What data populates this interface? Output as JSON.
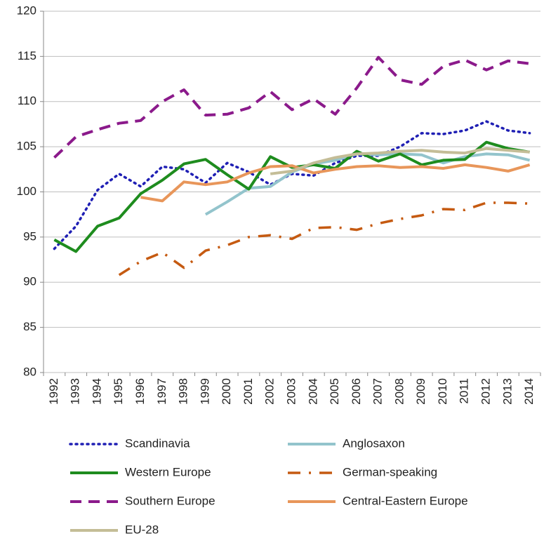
{
  "chart_data": {
    "type": "line",
    "categories": [
      "1992",
      "1993",
      "1994",
      "1995",
      "1996",
      "1997",
      "1998",
      "1999",
      "2000",
      "2001",
      "2002",
      "2003",
      "2004",
      "2005",
      "2006",
      "2007",
      "2008",
      "2009",
      "2010",
      "2011",
      "2012",
      "2013",
      "2014"
    ],
    "ylim": [
      80,
      120
    ],
    "yticks": [
      80,
      85,
      90,
      95,
      100,
      105,
      110,
      115,
      120
    ],
    "grid": true,
    "series": [
      {
        "name": "Scandinavia",
        "color": "#1f1fb4",
        "style": "dotted",
        "values": [
          93.7,
          96.2,
          100.2,
          102,
          100.6,
          102.8,
          102.5,
          101,
          103.2,
          102.2,
          100.8,
          102,
          101.8,
          103.2,
          104,
          104,
          105,
          106.5,
          106.4,
          106.8,
          107.8,
          106.8,
          106.5
        ]
      },
      {
        "name": "Anglosaxon",
        "color": "#93c4cc",
        "style": "solid",
        "values": [
          null,
          null,
          null,
          null,
          null,
          null,
          null,
          97.5,
          98.9,
          100.4,
          100.6,
          102.2,
          103.1,
          103.5,
          104.2,
          104.1,
          104.2,
          104.1,
          103.2,
          103.9,
          104.2,
          104.1,
          103.5
        ]
      },
      {
        "name": "Western Europe",
        "color": "#1e8c1e",
        "style": "solid",
        "values": [
          94.7,
          93.4,
          96.2,
          97.1,
          99.8,
          101.3,
          103.1,
          103.6,
          101.9,
          100.3,
          103.9,
          102.7,
          103,
          102.6,
          104.5,
          103.4,
          104.2,
          103,
          103.5,
          103.6,
          105.5,
          104.8,
          104.4
        ]
      },
      {
        "name": "German-speaking",
        "color": "#c55a11",
        "style": "dashdot",
        "values": [
          null,
          null,
          null,
          90.8,
          92.3,
          93.3,
          91.6,
          93.5,
          94.1,
          95,
          95.2,
          94.8,
          96,
          96.1,
          95.8,
          96.5,
          97,
          97.4,
          98.1,
          98,
          98.8,
          98.8,
          98.7
        ]
      },
      {
        "name": "Southern Europe",
        "color": "#8b1a8b",
        "style": "dashed",
        "values": [
          103.8,
          106.1,
          106.9,
          107.6,
          107.9,
          110,
          111.3,
          108.5,
          108.6,
          109.3,
          111.1,
          109.1,
          110.3,
          108.6,
          111.5,
          114.9,
          112.4,
          111.9,
          113.9,
          114.6,
          113.5,
          114.5,
          114.2
        ]
      },
      {
        "name": "Central-Eastern Europe",
        "color": "#e8965a",
        "style": "solid",
        "values": [
          null,
          null,
          null,
          null,
          99.4,
          99,
          101.1,
          100.8,
          101.1,
          102.1,
          102.8,
          102.9,
          102.1,
          102.5,
          102.8,
          102.9,
          102.7,
          102.8,
          102.6,
          103,
          102.7,
          102.3,
          103
        ]
      },
      {
        "name": "EU-28",
        "color": "#c4bd97",
        "style": "solid",
        "values": [
          null,
          null,
          null,
          null,
          null,
          null,
          null,
          null,
          null,
          null,
          102,
          102.3,
          103.2,
          103.8,
          104.2,
          104.3,
          104.5,
          104.6,
          104.4,
          104.3,
          104.8,
          104.6,
          104.4
        ]
      }
    ]
  }
}
